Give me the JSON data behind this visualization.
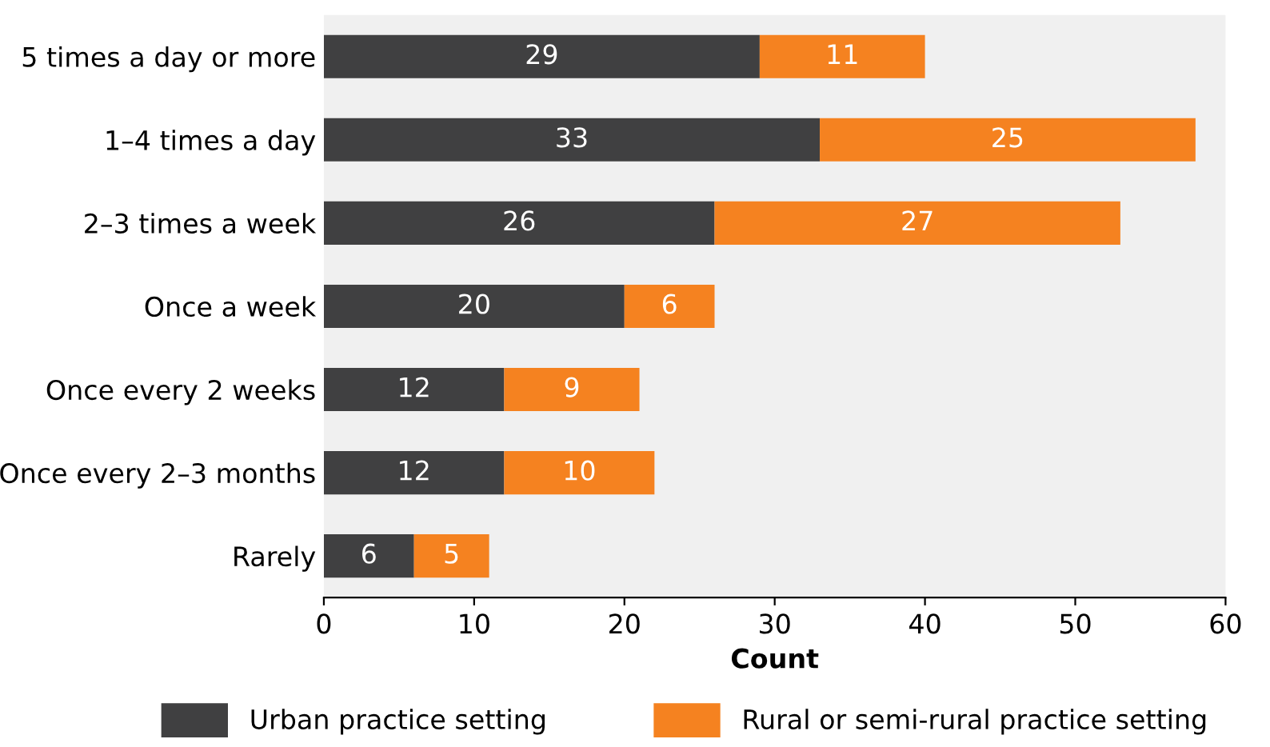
{
  "chart_data": {
    "type": "bar",
    "orientation": "horizontal",
    "stacked": true,
    "xlabel": "Count",
    "categories": [
      "5 times a day or more",
      "1–4 times a day",
      "2–3 times a week",
      "Once a week",
      "Once every 2 weeks",
      "Once every 2–3 months",
      "Rarely"
    ],
    "series": [
      {
        "name": "Urban practice setting",
        "color": "#404041",
        "values": [
          29,
          33,
          26,
          20,
          12,
          12,
          6
        ]
      },
      {
        "name": "Rural or semi-rural practice setting",
        "color": "#f58220",
        "values": [
          11,
          25,
          27,
          6,
          9,
          10,
          5
        ]
      }
    ],
    "xlim": [
      0,
      60
    ],
    "xticks": [
      0,
      10,
      20,
      30,
      40,
      50,
      60
    ],
    "data_labels": true,
    "legend": "bottom",
    "grid": false
  }
}
